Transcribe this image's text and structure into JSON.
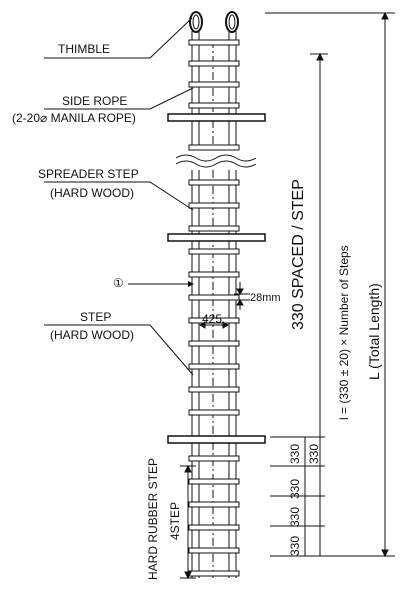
{
  "labels": {
    "thimble": "THIMBLE",
    "side_rope_1": "SIDE ROPE",
    "side_rope_2": "(2-20⌀ MANILA ROPE)",
    "spreader_step_1": "SPREADER STEP",
    "spreader_step_2": "(HARD WOOD)",
    "callout": "①",
    "step_1": "STEP",
    "step_2": "(HARD WOOD)",
    "hard_rubber_step": "HARD RUBBER STEP",
    "four_step": "4STEP",
    "width": "425",
    "gap": "28mm"
  },
  "dimensions": {
    "spaced": "330 SPACED / STEP",
    "formula": "l = (330 ± 20) × Number of Steps",
    "total": "L (Total Length)",
    "step_spacing": [
      "330",
      "330",
      "330",
      "330"
    ]
  }
}
